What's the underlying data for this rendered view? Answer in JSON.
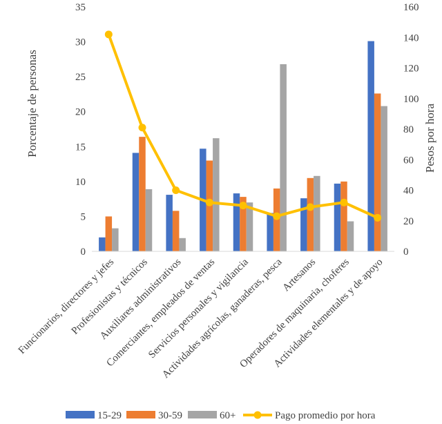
{
  "chart_data": {
    "type": "bar+line",
    "categories": [
      "Funcionarios, directores y jefes",
      "Profesionistas y técnicos",
      "Auxiliares administrativos",
      "Comerciantes, empleados de ventas",
      "Servicios personales y vigilancia",
      "Actividades agrícolas, ganaderas,  pesca",
      "Artesanos",
      "Operadores de maquinaria, choferes",
      "Actividades elementales y de apoyo"
    ],
    "series": [
      {
        "name": "15-29",
        "type": "bar",
        "axis": "left",
        "color": "#4472C4",
        "values": [
          2.0,
          14.1,
          8.1,
          14.7,
          8.3,
          5.5,
          7.6,
          9.7,
          30.1
        ]
      },
      {
        "name": "30-59",
        "type": "bar",
        "axis": "left",
        "color": "#ED7D31",
        "values": [
          5.0,
          16.4,
          5.8,
          13.0,
          7.8,
          9.0,
          10.5,
          10.0,
          22.6
        ]
      },
      {
        "name": "60+",
        "type": "bar",
        "axis": "left",
        "color": "#A5A5A5",
        "values": [
          3.3,
          8.9,
          1.9,
          16.2,
          7.0,
          26.8,
          10.8,
          4.3,
          20.8
        ]
      },
      {
        "name": "Pago promedio por hora",
        "type": "line",
        "axis": "right",
        "color": "#FFC000",
        "values": [
          142,
          81,
          40,
          32,
          30,
          23,
          29,
          32,
          22
        ]
      }
    ],
    "ylabel": "Porcentaje de personas",
    "y2label": "Pesos por hora",
    "ylim": [
      0,
      35
    ],
    "yticks": [
      0,
      5,
      10,
      15,
      20,
      25,
      30,
      35
    ],
    "y2lim": [
      0,
      160
    ],
    "y2ticks": [
      0,
      20,
      40,
      60,
      80,
      100,
      120,
      140,
      160
    ],
    "grid": false,
    "legend_position": "bottom"
  }
}
